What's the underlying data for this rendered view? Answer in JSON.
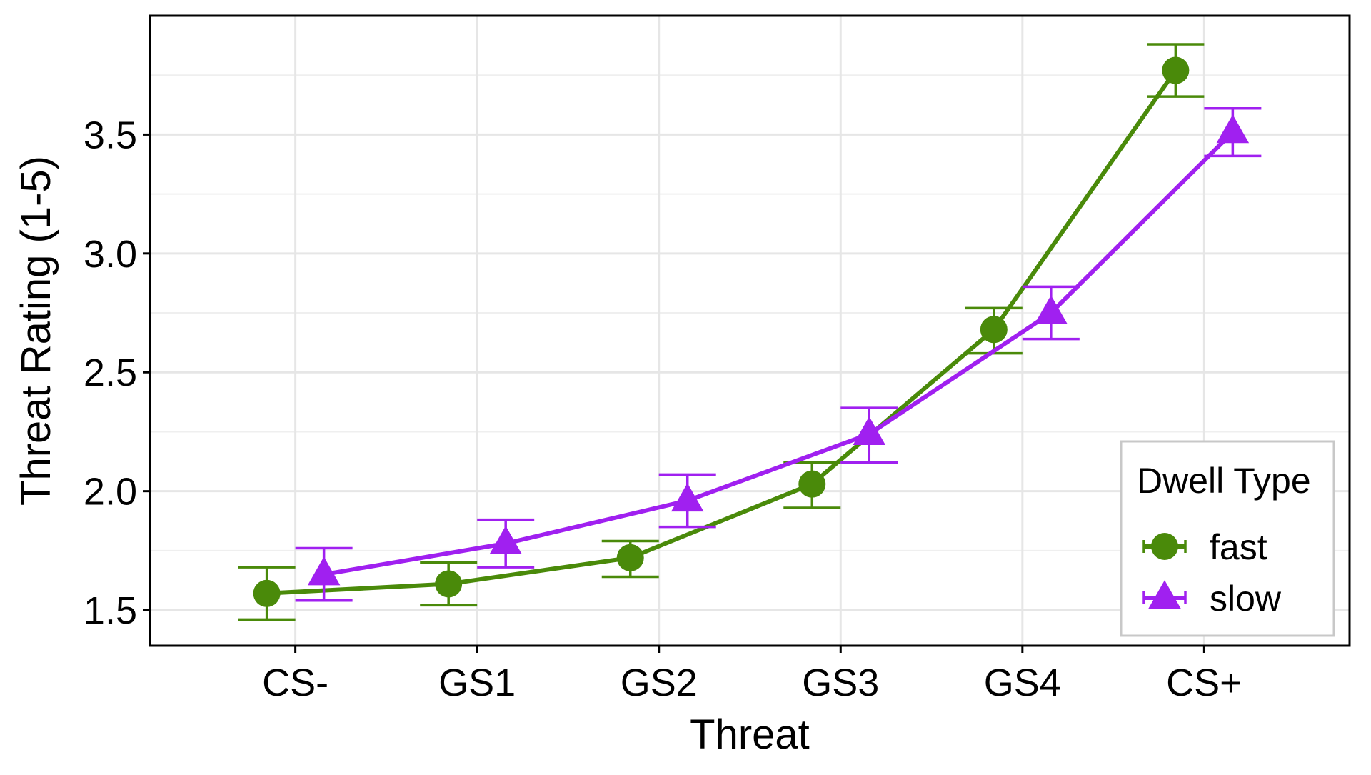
{
  "chart_data": {
    "type": "line",
    "title": "",
    "xlabel": "Threat",
    "ylabel": "Threat Rating (1-5)",
    "categories": [
      "CS-",
      "GS1",
      "GS2",
      "GS3",
      "GS4",
      "CS+"
    ],
    "ylim": [
      1.35,
      4.0
    ],
    "yticks": [
      1.5,
      2.0,
      2.5,
      3.0,
      3.5
    ],
    "ytick_labels": [
      "1.5",
      "2.0",
      "2.5",
      "3.0",
      "3.5"
    ],
    "grid": true,
    "error_bars": true,
    "legend": {
      "title": "Dwell Type",
      "position": "bottom-right"
    },
    "series": [
      {
        "name": "fast",
        "color": "#4a8a0a",
        "marker": "circle",
        "values": [
          1.57,
          1.61,
          1.72,
          2.03,
          2.68,
          3.77
        ],
        "lower": [
          1.46,
          1.52,
          1.64,
          1.93,
          2.58,
          3.66
        ],
        "upper": [
          1.68,
          1.7,
          1.79,
          2.12,
          2.77,
          3.88
        ]
      },
      {
        "name": "slow",
        "color": "#a020f0",
        "marker": "triangle",
        "values": [
          1.65,
          1.78,
          1.96,
          2.24,
          2.75,
          3.51
        ],
        "lower": [
          1.54,
          1.68,
          1.85,
          2.12,
          2.64,
          3.41
        ],
        "upper": [
          1.76,
          1.88,
          2.07,
          2.35,
          2.86,
          3.61
        ]
      }
    ]
  }
}
